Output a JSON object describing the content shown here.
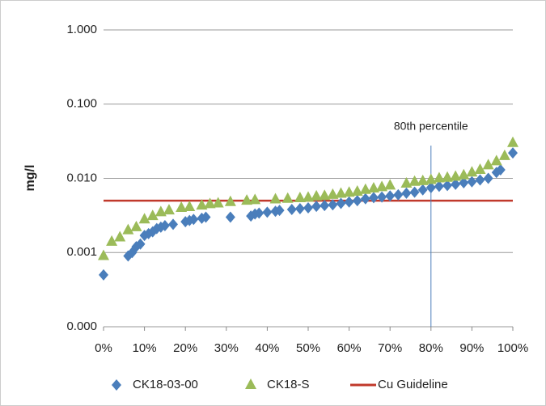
{
  "chart_data": {
    "type": "scatter",
    "ylabel": "mg/l",
    "ylog": true,
    "grid": true,
    "xlim": [
      0,
      100
    ],
    "ylim": [
      0.0001,
      1
    ],
    "xticks": [
      {
        "value": 0,
        "label": "0%"
      },
      {
        "value": 10,
        "label": "10%"
      },
      {
        "value": 20,
        "label": "20%"
      },
      {
        "value": 30,
        "label": "30%"
      },
      {
        "value": 40,
        "label": "40%"
      },
      {
        "value": 50,
        "label": "50%"
      },
      {
        "value": 60,
        "label": "60%"
      },
      {
        "value": 70,
        "label": "70%"
      },
      {
        "value": 80,
        "label": "80%"
      },
      {
        "value": 90,
        "label": "90%"
      },
      {
        "value": 100,
        "label": "100%"
      }
    ],
    "yticks": [
      {
        "value": 0.0001,
        "label": "0.000"
      },
      {
        "value": 0.001,
        "label": "0.001"
      },
      {
        "value": 0.01,
        "label": "0.010"
      },
      {
        "value": 0.1,
        "label": "0.100"
      },
      {
        "value": 1,
        "label": "1.000"
      }
    ],
    "series": [
      {
        "name": "CK18-03-00",
        "color": "#4a7ebb",
        "marker": "diamond",
        "x": [
          0,
          6,
          7,
          8,
          9,
          10,
          11,
          12,
          13,
          14,
          15,
          17,
          20,
          21,
          22,
          24,
          25,
          31,
          36,
          37,
          38,
          40,
          42,
          43,
          46,
          48,
          50,
          52,
          54,
          56,
          58,
          60,
          62,
          64,
          66,
          68,
          70,
          72,
          74,
          76,
          78,
          80,
          82,
          84,
          86,
          88,
          90,
          92,
          94,
          96,
          97,
          100
        ],
        "values": [
          0.0005,
          0.0009,
          0.001,
          0.0012,
          0.0013,
          0.0017,
          0.0018,
          0.0019,
          0.0021,
          0.0022,
          0.0023,
          0.0024,
          0.0026,
          0.0027,
          0.0028,
          0.0029,
          0.003,
          0.003,
          0.0031,
          0.0033,
          0.0034,
          0.0035,
          0.0036,
          0.0037,
          0.0038,
          0.0039,
          0.004,
          0.0042,
          0.0043,
          0.0044,
          0.0046,
          0.0048,
          0.005,
          0.0053,
          0.0055,
          0.0056,
          0.0058,
          0.006,
          0.0063,
          0.0065,
          0.007,
          0.0075,
          0.0078,
          0.008,
          0.0083,
          0.0087,
          0.009,
          0.0095,
          0.01,
          0.012,
          0.013,
          0.022
        ]
      },
      {
        "name": "CK18-S",
        "color": "#9bbb59",
        "marker": "triangle",
        "x": [
          0,
          2,
          4,
          6,
          8,
          10,
          12,
          14,
          16,
          19,
          21,
          24,
          26,
          28,
          31,
          35,
          37,
          42,
          45,
          48,
          50,
          52,
          54,
          56,
          58,
          60,
          62,
          64,
          66,
          68,
          70,
          74,
          76,
          78,
          80,
          82,
          84,
          86,
          88,
          90,
          92,
          94,
          96,
          98,
          100
        ],
        "values": [
          0.0009,
          0.0014,
          0.0016,
          0.002,
          0.0022,
          0.0028,
          0.0031,
          0.0035,
          0.0037,
          0.004,
          0.0041,
          0.0043,
          0.0045,
          0.0046,
          0.0048,
          0.005,
          0.0051,
          0.0052,
          0.0053,
          0.0054,
          0.0055,
          0.0057,
          0.0058,
          0.006,
          0.0062,
          0.0064,
          0.0066,
          0.007,
          0.0073,
          0.0076,
          0.008,
          0.0085,
          0.009,
          0.0092,
          0.0095,
          0.01,
          0.0102,
          0.0105,
          0.011,
          0.012,
          0.013,
          0.015,
          0.017,
          0.02,
          0.03
        ]
      }
    ],
    "hlines": [
      {
        "name": "Cu Guideline",
        "value": 0.005,
        "color": "#c0392b"
      }
    ],
    "annotations": [
      {
        "text": "80th percentile",
        "x": 80,
        "color": "#4a7ebb"
      }
    ]
  }
}
